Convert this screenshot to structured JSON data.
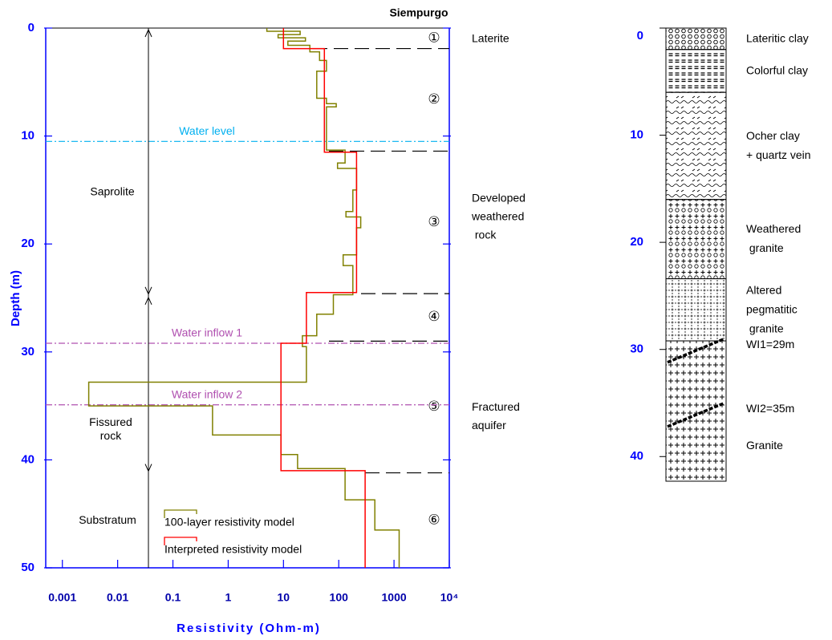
{
  "chart_data": {
    "type": "line",
    "title": "Siempurgo",
    "x_label": "Resistivity  (Ohm-m)",
    "y_label": "Depth (m)",
    "xscale": "log",
    "xlim": [
      0.0005,
      10000
    ],
    "xticks": [
      0.001,
      0.01,
      0.1,
      1,
      10,
      100,
      1000,
      {
        "value": 10000,
        "label": "10⁴"
      }
    ],
    "ylim": [
      0,
      50
    ],
    "y_inverted": true,
    "yticks": [
      0,
      10,
      20,
      30,
      40,
      50
    ],
    "legend_position": "lower left",
    "series": [
      {
        "name": "100-layer resistivity model",
        "color": "#808000",
        "x": [
          5,
          5,
          20,
          20,
          8,
          8,
          25,
          25,
          12,
          12,
          30,
          30,
          45,
          45,
          60,
          60,
          40,
          40,
          60,
          60,
          90,
          90,
          60,
          60,
          130,
          130,
          95,
          95,
          210,
          210,
          180,
          180,
          135,
          135,
          250,
          250,
          210,
          210,
          120,
          120,
          180,
          180,
          80,
          80,
          40,
          40,
          22,
          22,
          26,
          26,
          0.003,
          0.003,
          0.52,
          0.52,
          9,
          9,
          18,
          18,
          130,
          130,
          450,
          450,
          1240,
          1240
        ],
        "y": [
          0,
          0.3,
          0.3,
          0.6,
          0.6,
          0.9,
          0.9,
          1.2,
          1.2,
          1.6,
          1.6,
          2.2,
          2.2,
          3,
          3,
          4,
          4,
          6.5,
          6.5,
          7,
          7,
          7.3,
          7.3,
          11.3,
          11.3,
          12.5,
          12.5,
          13,
          13,
          15,
          15,
          17,
          17,
          17.5,
          17.5,
          18.5,
          18.5,
          21,
          21,
          22,
          22,
          24.7,
          24.7,
          26.5,
          26.5,
          28.5,
          28.5,
          29.5,
          29.5,
          32.8,
          32.8,
          35,
          35,
          37.7,
          37.7,
          39.5,
          39.5,
          40.8,
          40.8,
          43.7,
          43.7,
          46.5,
          46.5,
          50
        ]
      },
      {
        "name": "Interpreted resistivity model",
        "color": "#ff0000",
        "x": [
          10,
          10,
          55,
          55,
          210,
          210,
          26,
          26,
          9,
          9,
          300,
          300
        ],
        "y": [
          0,
          1.9,
          1.9,
          11.5,
          11.5,
          24.5,
          24.5,
          29.2,
          29.2,
          41,
          41,
          50
        ]
      }
    ],
    "reference_lines": [
      {
        "label": "Water level",
        "y": 10.5,
        "color": "#00b0f0"
      },
      {
        "label": "Water inflow 1",
        "y": 29.2,
        "color": "#b050b0"
      },
      {
        "label": "Water inflow 2",
        "y": 34.9,
        "color": "#b050b0"
      }
    ],
    "zones": [
      {
        "label": "①",
        "top": 0,
        "bottom": 1.9
      },
      {
        "label": "②",
        "top": 1.9,
        "bottom": 11.4
      },
      {
        "label": "③",
        "top": 11.4,
        "bottom": 24.6
      },
      {
        "label": "④",
        "top": 24.6,
        "bottom": 29
      },
      {
        "label": "⑤",
        "top": 29,
        "bottom": 41.2
      },
      {
        "label": "⑥",
        "top": 41.2,
        "bottom": 50
      }
    ],
    "zone_descriptions": [
      [
        "Laterite"
      ],
      [
        "Developed",
        "weathered",
        " rock"
      ],
      [
        "Fractured",
        "aquifer"
      ]
    ],
    "units": [
      {
        "label": [
          "Saprolite"
        ],
        "top": 0,
        "bottom": 24.8
      },
      {
        "label": [
          "Fissured",
          "rock"
        ],
        "top": 24.8,
        "bottom": 41.2
      },
      {
        "label": [
          "Substratum"
        ],
        "top": 41.2,
        "bottom": 50
      }
    ],
    "lithology": {
      "ylim": [
        0,
        42.3
      ],
      "yticks": [
        0,
        10,
        20,
        30,
        40
      ],
      "layers": [
        {
          "label": [
            "Lateritic clay"
          ],
          "top": 0,
          "bottom": 2,
          "pattern": "circles"
        },
        {
          "label": [
            "Colorful clay"
          ],
          "top": 2,
          "bottom": 6,
          "pattern": "dashes"
        },
        {
          "label": [
            "Ocher clay",
            "+ quartz vein"
          ],
          "top": 6,
          "bottom": 16,
          "pattern": "waves"
        },
        {
          "label": [
            "Weathered",
            " granite"
          ],
          "top": 16,
          "bottom": 23.4,
          "pattern": "plus-circles"
        },
        {
          "label": [
            "Altered",
            "pegmatitic",
            " granite"
          ],
          "top": 23.4,
          "bottom": 29.2,
          "pattern": "dots"
        },
        {
          "label": [
            "Granite"
          ],
          "top": 29.2,
          "bottom": 42.3,
          "pattern": "plus"
        }
      ],
      "fractures": [
        {
          "label": "WI1=29m",
          "depth": 29
        },
        {
          "label": "WI2=35m",
          "depth": 35
        }
      ]
    }
  }
}
